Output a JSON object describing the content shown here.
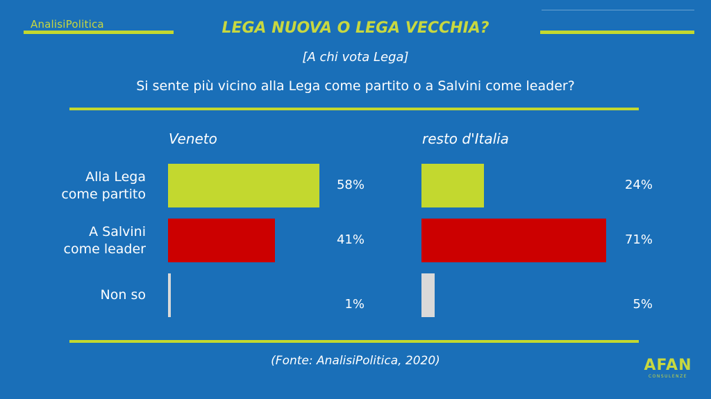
{
  "brand": "AnalisiPolitica",
  "title": "LEGA NUOVA O LEGA VECCHIA?",
  "subtitle": "[A chi vota Lega]",
  "question": "Si sente più vicino alla Lega come partito o a Salvini come leader?",
  "source": "(Fonte: AnalisiPolitica, 2020)",
  "logo": {
    "big": "AFAN",
    "small": "CONSULENZE"
  },
  "colors": {
    "background": "#1a6fb8",
    "accent": "#c3d82f",
    "partito": "#c3d82f",
    "leader": "#cc0000",
    "nonso": "#d9d9d9"
  },
  "chart_data": [
    {
      "type": "bar",
      "orientation": "horizontal",
      "title": "Veneto",
      "categories": [
        "Alla Lega\ncome partito",
        "A Salvini\ncome leader",
        "Non so"
      ],
      "values": [
        58,
        41,
        1
      ],
      "labels": [
        "58%",
        "41%",
        "1%"
      ],
      "unit": "%",
      "xlim": [
        0,
        100
      ]
    },
    {
      "type": "bar",
      "orientation": "horizontal",
      "title": "resto d'Italia",
      "categories": [
        "Alla Lega\ncome partito",
        "A Salvini\ncome leader",
        "Non so"
      ],
      "values": [
        24,
        71,
        5
      ],
      "labels": [
        "24%",
        "71%",
        "5%"
      ],
      "unit": "%",
      "xlim": [
        0,
        100
      ]
    }
  ]
}
